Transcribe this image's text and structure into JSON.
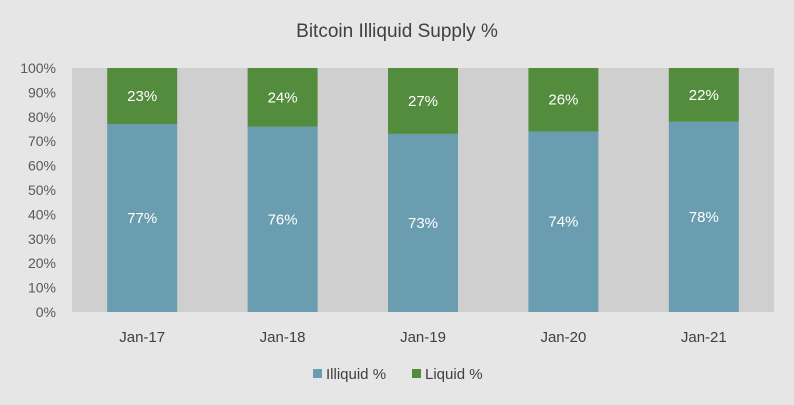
{
  "chart_data": {
    "type": "bar",
    "stacked": true,
    "title": "Bitcoin Illiquid Supply %",
    "categories": [
      "Jan-17",
      "Jan-18",
      "Jan-19",
      "Jan-20",
      "Jan-21"
    ],
    "series": [
      {
        "name": "Illiquid %",
        "values": [
          77,
          76,
          73,
          74,
          78
        ],
        "labels": [
          "77%",
          "76%",
          "73%",
          "74%",
          "78%"
        ],
        "color": "#6a9db0"
      },
      {
        "name": "Liquid %",
        "values": [
          23,
          24,
          27,
          26,
          22
        ],
        "labels": [
          "23%",
          "24%",
          "27%",
          "26%",
          "22%"
        ],
        "color": "#548c3e"
      }
    ],
    "ylim": [
      0,
      100
    ],
    "yticks": [
      "0%",
      "10%",
      "20%",
      "30%",
      "40%",
      "50%",
      "60%",
      "70%",
      "80%",
      "90%",
      "100%"
    ],
    "plot_background": "#d0cfcf",
    "page_background": "#e7e6e6",
    "legend_position": "bottom",
    "grid": false
  }
}
